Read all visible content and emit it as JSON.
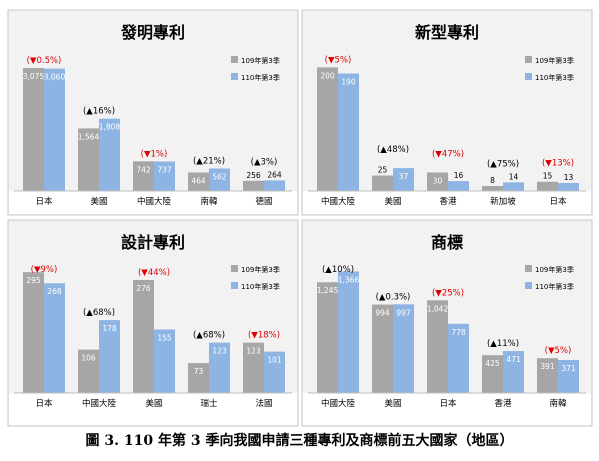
{
  "caption": "圖 3. 110 年第 3 季向我國申請三種專利及商標前五大國家（地區）",
  "colors": {
    "series_2020": "#a6a6a6",
    "series_2021": "#8db4e2",
    "change": "#e00000",
    "text": "#000000",
    "panel_bg": "#f2f2f2"
  },
  "chart_data": [
    {
      "type": "bar",
      "title": "發明專利",
      "categories": [
        "日本",
        "美國",
        "中國大陸",
        "南韓",
        "德國"
      ],
      "series": [
        {
          "name": "109年第3季",
          "values": [
            3075,
            1564,
            742,
            464,
            256
          ],
          "labels": [
            "3,075",
            "1,564",
            "742",
            "464",
            "256"
          ]
        },
        {
          "name": "110年第3季",
          "values": [
            3060,
            1808,
            737,
            562,
            264
          ],
          "labels": [
            "3,060",
            "1,808",
            "737",
            "562",
            "264"
          ]
        }
      ],
      "changes": [
        "(▼0.5%)",
        "(▲16%)",
        "(▼1%)",
        "(▲21%)",
        "(▲3%)"
      ],
      "change_dir": [
        "down",
        "up",
        "down",
        "up",
        "up"
      ],
      "legend": "top-right",
      "ylim": [
        0,
        3400
      ]
    },
    {
      "type": "bar",
      "title": "新型專利",
      "categories": [
        "中國大陸",
        "美國",
        "香港",
        "新加坡",
        "日本"
      ],
      "series": [
        {
          "name": "109年第3季",
          "values": [
            200,
            25,
            30,
            8,
            15
          ],
          "labels": [
            "200",
            "25",
            "30",
            "8",
            "15"
          ]
        },
        {
          "name": "110年第3季",
          "values": [
            190,
            37,
            16,
            14,
            13
          ],
          "labels": [
            "190",
            "37",
            "16",
            "14",
            "13"
          ]
        }
      ],
      "changes": [
        "(▼5%)",
        "(▲48%)",
        "(▼47%)",
        "(▲75%)",
        "(▼13%)"
      ],
      "change_dir": [
        "down",
        "up",
        "down",
        "up",
        "down"
      ],
      "legend": "top-right",
      "ylim": [
        0,
        220
      ]
    },
    {
      "type": "bar",
      "title": "設計專利",
      "categories": [
        "日本",
        "中國大陸",
        "美國",
        "瑞士",
        "法國"
      ],
      "series": [
        {
          "name": "109年第3季",
          "values": [
            295,
            106,
            276,
            73,
            123
          ],
          "labels": [
            "295",
            "106",
            "276",
            "73",
            "123"
          ]
        },
        {
          "name": "110年第3季",
          "values": [
            268,
            178,
            155,
            123,
            101
          ],
          "labels": [
            "268",
            "178",
            "155",
            "123",
            "101"
          ]
        }
      ],
      "changes": [
        "(▼9%)",
        "(▲68%)",
        "(▼44%)",
        "(▲68%)",
        "(▼18%)"
      ],
      "change_dir": [
        "down",
        "up",
        "down",
        "up",
        "down"
      ],
      "legend": "top-right",
      "ylim": [
        0,
        315
      ]
    },
    {
      "type": "bar",
      "title": "商標",
      "categories": [
        "中國大陸",
        "美國",
        "日本",
        "香港",
        "南韓"
      ],
      "series": [
        {
          "name": "109年第3季",
          "values": [
            1245,
            994,
            1042,
            425,
            391
          ],
          "labels": [
            "1,245",
            "994",
            "1,042",
            "425",
            "391"
          ]
        },
        {
          "name": "110年第3季",
          "values": [
            1366,
            997,
            778,
            471,
            371
          ],
          "labels": [
            "1,366",
            "997",
            "778",
            "471",
            "371"
          ]
        }
      ],
      "changes": [
        "(▲10%)",
        "(▲0.3%)",
        "(▼25%)",
        "(▲11%)",
        "(▼5%)"
      ],
      "change_dir": [
        "up",
        "up",
        "down",
        "up",
        "down"
      ],
      "legend": "top-right",
      "ylim": [
        0,
        1450
      ]
    }
  ]
}
